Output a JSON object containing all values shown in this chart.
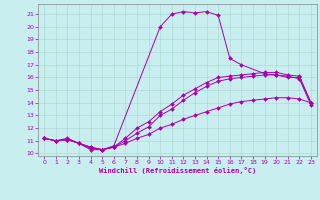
{
  "xlabel": "Windchill (Refroidissement éolien,°C)",
  "background_color": "#c8eef0",
  "line_color": "#aa00aa",
  "grid_color": "#aad8cc",
  "xlim": [
    -0.5,
    23.5
  ],
  "ylim": [
    9.8,
    21.8
  ],
  "yticks": [
    10,
    11,
    12,
    13,
    14,
    15,
    16,
    17,
    18,
    19,
    20,
    21
  ],
  "xticks": [
    0,
    1,
    2,
    3,
    4,
    5,
    6,
    7,
    8,
    9,
    10,
    11,
    12,
    13,
    14,
    15,
    16,
    17,
    18,
    19,
    20,
    21,
    22,
    23
  ],
  "series": [
    {
      "x": [
        0,
        1,
        2,
        3,
        4,
        5,
        6,
        10,
        11,
        12,
        13,
        14,
        15,
        16,
        17,
        19,
        20,
        21,
        22,
        23
      ],
      "y": [
        11.2,
        11.0,
        11.2,
        10.8,
        10.5,
        10.3,
        10.6,
        20.0,
        21.0,
        21.2,
        21.1,
        21.2,
        20.9,
        17.5,
        17.0,
        16.3,
        16.2,
        16.0,
        16.0,
        14.0
      ]
    },
    {
      "x": [
        0,
        1,
        2,
        3,
        4,
        5,
        6,
        7,
        8,
        9,
        10,
        11,
        12,
        13,
        14,
        15,
        16,
        17,
        18,
        19,
        20,
        21,
        22,
        23
      ],
      "y": [
        11.2,
        11.0,
        11.1,
        10.8,
        10.3,
        10.3,
        10.5,
        10.8,
        11.2,
        11.5,
        12.0,
        12.3,
        12.7,
        13.0,
        13.3,
        13.6,
        13.9,
        14.1,
        14.2,
        14.3,
        14.4,
        14.4,
        14.3,
        14.0
      ]
    },
    {
      "x": [
        0,
        1,
        2,
        3,
        4,
        5,
        6,
        7,
        8,
        9,
        10,
        11,
        12,
        13,
        14,
        15,
        16,
        17,
        18,
        19,
        20,
        21,
        22,
        23
      ],
      "y": [
        11.2,
        11.0,
        11.1,
        10.8,
        10.4,
        10.3,
        10.5,
        11.0,
        11.6,
        12.1,
        13.0,
        13.5,
        14.2,
        14.8,
        15.3,
        15.7,
        15.9,
        16.0,
        16.1,
        16.2,
        16.2,
        16.1,
        15.9,
        13.8
      ]
    },
    {
      "x": [
        0,
        1,
        2,
        3,
        4,
        5,
        6,
        7,
        8,
        9,
        10,
        11,
        12,
        13,
        14,
        15,
        16,
        17,
        18,
        19,
        20,
        21,
        22,
        23
      ],
      "y": [
        11.2,
        11.0,
        11.1,
        10.8,
        10.5,
        10.3,
        10.5,
        11.2,
        12.0,
        12.5,
        13.3,
        13.9,
        14.6,
        15.1,
        15.6,
        16.0,
        16.1,
        16.2,
        16.3,
        16.4,
        16.4,
        16.2,
        16.1,
        14.0
      ]
    }
  ]
}
